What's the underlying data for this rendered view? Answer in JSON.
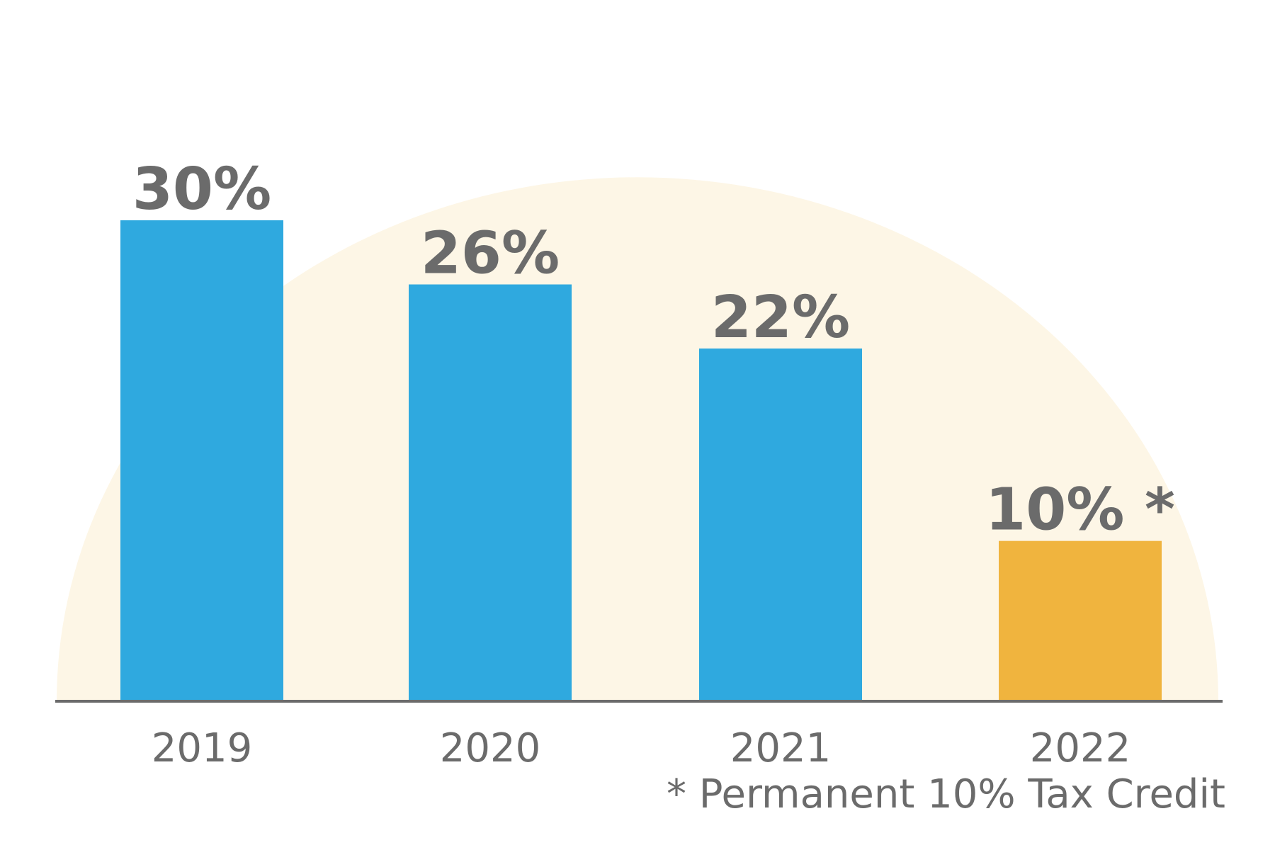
{
  "chart_data": {
    "type": "bar",
    "title": "",
    "xlabel": "",
    "ylabel": "",
    "categories": [
      "2019",
      "2020",
      "2021",
      "2022"
    ],
    "values": [
      30,
      26,
      22,
      10
    ],
    "value_labels": [
      "30%",
      "26%",
      "22%",
      "10% *"
    ],
    "bar_colors": [
      "#2fa9df",
      "#2fa9df",
      "#2fa9df",
      "#f0b43e"
    ],
    "ylim": [
      0,
      30
    ],
    "grid": false,
    "legend": "none",
    "footnote": "* Permanent 10% Tax Credit"
  },
  "colors": {
    "background_arc": "#fdf6e6",
    "axis_line": "#6b6b6b",
    "text": "#6b6b6b"
  }
}
